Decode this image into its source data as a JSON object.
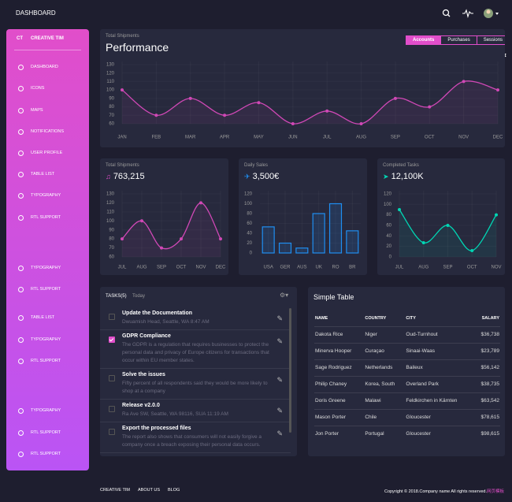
{
  "navbar": {
    "title": "DASHBOARD"
  },
  "sidebar": {
    "logo_short": "CT",
    "logo": "CREATIVE TIM",
    "items": [
      "DASHBOARD",
      "ICONS",
      "MAPS",
      "NOTIFICATIONS",
      "USER PROFILE",
      "TABLE LIST",
      "TYPOGRAPHY",
      "RTL SUPPORT",
      "TYPOGRAPHY",
      "RTL SUPPORT",
      "TABLE LIST",
      "TYPOGRAPHY",
      "RTL SUPPORT",
      "TYPOGRAPHY",
      "RTL SUPPORT",
      "RTL SUPPORT"
    ]
  },
  "chart_data": [
    {
      "type": "line",
      "subtitle": "Total Shipments",
      "title": "Performance",
      "tabs": [
        "Accounts",
        "Purchases",
        "Sessions"
      ],
      "active_tab": "Accounts",
      "categories": [
        "JAN",
        "FEB",
        "MAR",
        "APR",
        "MAY",
        "JUN",
        "JUL",
        "AUG",
        "SEP",
        "OCT",
        "NOV",
        "DEC"
      ],
      "values": [
        100,
        70,
        90,
        70,
        85,
        60,
        75,
        60,
        90,
        80,
        110,
        100
      ],
      "color": "#d048b6",
      "ylim": [
        60,
        130
      ],
      "yticks": [
        60,
        70,
        80,
        90,
        100,
        110,
        120,
        130
      ],
      "grid": true
    },
    {
      "type": "line",
      "title": "Total Shipments",
      "headline": "763,215",
      "categories": [
        "JUL",
        "AUG",
        "SEP",
        "OCT",
        "NOV",
        "DEC"
      ],
      "values": [
        80,
        100,
        70,
        80,
        120,
        80
      ],
      "color": "#d048b6",
      "ylim": [
        60,
        130
      ],
      "yticks": [
        60,
        70,
        80,
        90,
        100,
        110,
        120,
        130
      ],
      "grid": true
    },
    {
      "type": "bar",
      "title": "Daily Sales",
      "headline": "3,500€",
      "categories": [
        "USA",
        "GER",
        "AUS",
        "UK",
        "RO",
        "BR"
      ],
      "values": [
        53,
        20,
        10,
        80,
        100,
        45
      ],
      "color": "#1f8ef1",
      "ylim": [
        0,
        120
      ],
      "yticks": [
        0,
        20,
        40,
        60,
        80,
        100,
        120
      ],
      "grid": true
    },
    {
      "type": "line",
      "title": "Completed Tasks",
      "headline": "12,100K",
      "categories": [
        "JUL",
        "AUG",
        "SEP",
        "OCT",
        "NOV"
      ],
      "values": [
        90,
        27,
        60,
        12,
        80
      ],
      "color": "#00d6b4",
      "ylim": [
        0,
        120
      ],
      "yticks": [
        0,
        20,
        40,
        60,
        80,
        100,
        120
      ],
      "grid": true
    }
  ],
  "tasks": {
    "title": "TASKS(5)",
    "filter": "Today",
    "items": [
      {
        "title": "Update the Documentation",
        "description": "Dwuamish Head, Seattle, WA 8:47 AM",
        "checked": false
      },
      {
        "title": "GDPR Compliance",
        "description": "The GDPR is a regulation that requires businesses to protect the personal data and privacy of Europe citizens for transactions that occur within EU member states.",
        "checked": true
      },
      {
        "title": "Solve the issues",
        "description": "Fifty percent of all respondents said they would be more likely to shop at a company",
        "checked": false
      },
      {
        "title": "Release v2.0.0",
        "description": "Ra Ave SW, Seattle, WA 98116, SUA 11:19 AM",
        "checked": false
      },
      {
        "title": "Export the processed files",
        "description": "The report also shows that consumers will not easily forgive a company once a breach exposing their personal data occurs.",
        "checked": false
      }
    ]
  },
  "table": {
    "title": "Simple Table",
    "columns": [
      "NAME",
      "COUNTRY",
      "CITY",
      "SALARY"
    ],
    "rows": [
      [
        "Dakota Rice",
        "Niger",
        "Oud-Turnhout",
        "$36,738"
      ],
      [
        "Minerva Hooper",
        "Curaçao",
        "Sinaai-Waas",
        "$23,789"
      ],
      [
        "Sage Rodriguez",
        "Netherlands",
        "Baileux",
        "$56,142"
      ],
      [
        "Philip Chaney",
        "Korea, South",
        "Overland Park",
        "$38,735"
      ],
      [
        "Doris Greene",
        "Malawi",
        "Feldkirchen in Kärnten",
        "$63,542"
      ],
      [
        "Mason Porter",
        "Chile",
        "Gloucester",
        "$78,615"
      ],
      [
        "Jon Porter",
        "Portugal",
        "Gloucester",
        "$98,615"
      ]
    ]
  },
  "footer": {
    "links": [
      "CREATIVE TIM",
      "ABOUT US",
      "BLOG"
    ],
    "copyright": "Copyright © 2018.Company name All rights reserved.",
    "credit": "网页模板"
  }
}
